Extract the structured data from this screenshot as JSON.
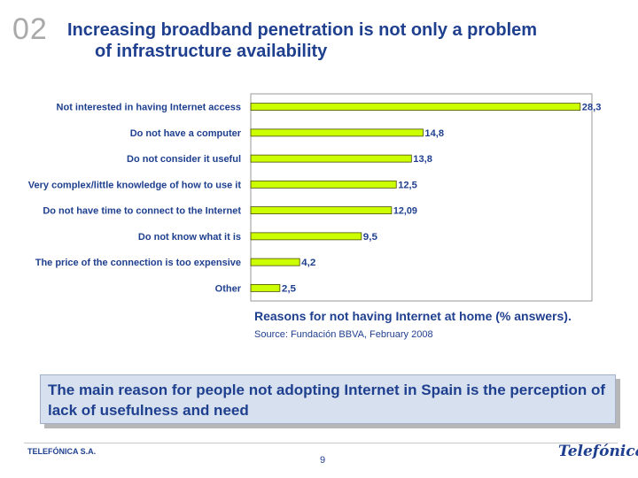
{
  "header": {
    "slide_number": "02",
    "title_line1": "Increasing broadband penetration is not only a problem",
    "title_line2": "of infrastructure availability"
  },
  "chart_data": {
    "type": "bar",
    "orientation": "horizontal",
    "categories": [
      "Not interested in having Internet access",
      "Do not have a computer",
      "Do not consider it useful",
      "Very complex/little knowledge of how to use it",
      "Do not have time to connect to the Internet",
      "Do not know what it is",
      "The price of the connection is too expensive",
      "Other"
    ],
    "values": [
      28.3,
      14.8,
      13.8,
      12.5,
      12.09,
      9.5,
      4.2,
      2.5
    ],
    "value_labels": [
      "28,3",
      "14,8",
      "13,8",
      "12,5",
      "12,09",
      "9,5",
      "4,2",
      "2,5"
    ],
    "xlim": [
      0,
      29
    ],
    "bar_color": "#ccff00",
    "bar_border": "#4a4a00",
    "label_color": "#1f3f8f"
  },
  "caption": {
    "main": "Reasons for not having Internet at home (% answers).",
    "source": "Source: Fundación BBVA, February 2008"
  },
  "callout": {
    "text": "The main reason for people not adopting Internet in Spain is the perception  of lack of usefulness and need"
  },
  "footer": {
    "company": "TELEFÓNICA S.A.",
    "page": "9",
    "logo_text": "Telefónica"
  }
}
